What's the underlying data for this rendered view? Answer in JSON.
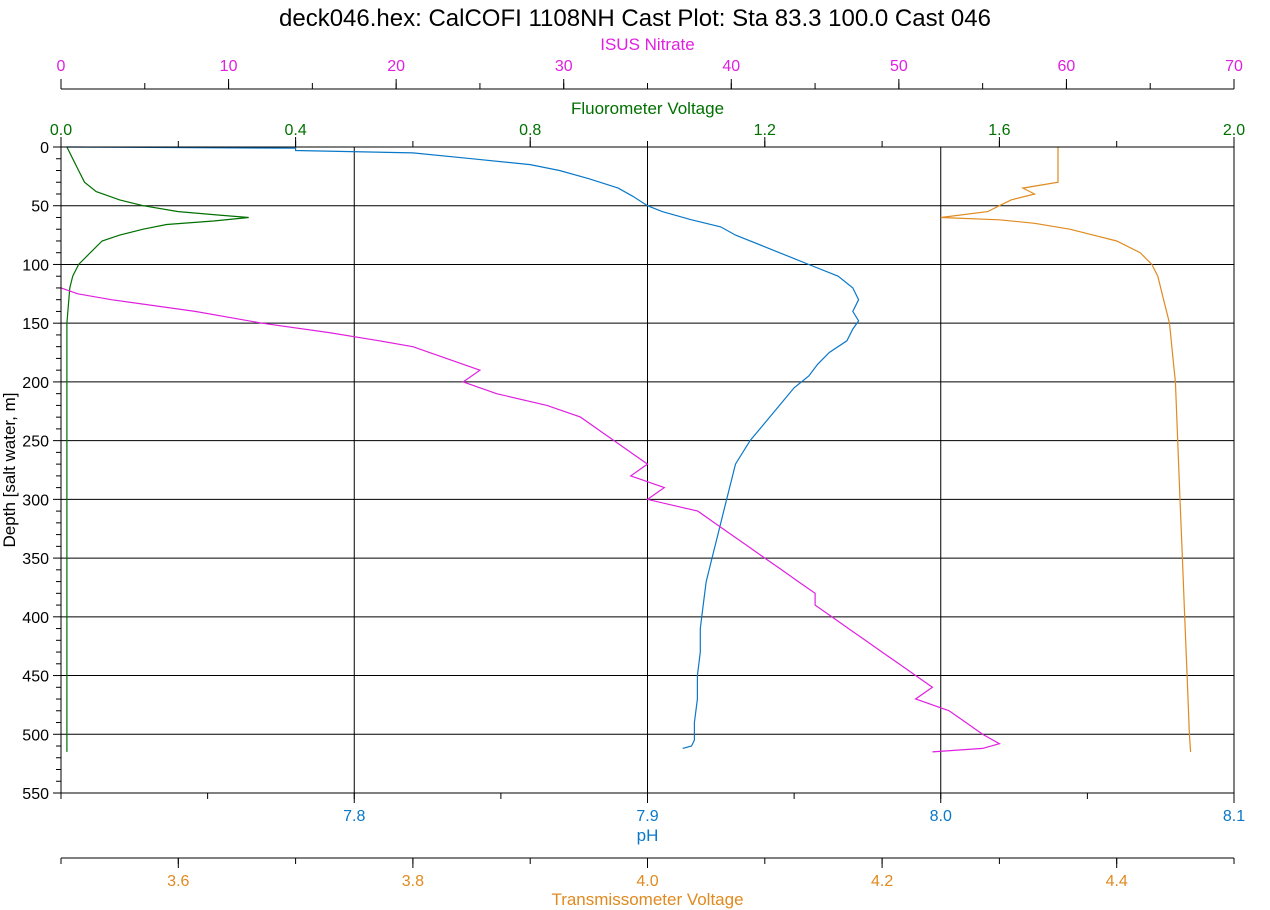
{
  "chart_data": {
    "type": "line",
    "title": "deck046.hex: CalCOFI 1108NH Cast Plot: Sta 83.3  100.0  Cast 046",
    "grid": true,
    "y_axis": {
      "label": "Depth [salt water, m]",
      "range": [
        0,
        550
      ],
      "ticks": [
        "0",
        "50",
        "100",
        "150",
        "200",
        "250",
        "300",
        "350",
        "400",
        "450",
        "500",
        "550"
      ],
      "reversed": true
    },
    "x_axes": [
      {
        "id": "nitrate",
        "label": "ISUS Nitrate",
        "color": "#e020e0",
        "position": "top-1",
        "range": [
          0,
          70
        ],
        "ticks": [
          "0",
          "10",
          "20",
          "30",
          "40",
          "50",
          "60",
          "70"
        ]
      },
      {
        "id": "fluor",
        "label": "Fluorometer Voltage",
        "color": "#007000",
        "position": "top-2",
        "range": [
          0,
          2.0
        ],
        "ticks": [
          "0.0",
          "0.4",
          "0.8",
          "1.2",
          "1.6",
          "2.0"
        ]
      },
      {
        "id": "ph",
        "label": "pH",
        "color": "#0a78c8",
        "position": "bottom-1",
        "range": [
          7.7,
          8.1
        ],
        "ticks": [
          "7.8",
          "7.9",
          "8.0",
          "8.1"
        ]
      },
      {
        "id": "trans",
        "label": "Transmissometer Voltage",
        "color": "#e08a20",
        "position": "bottom-2",
        "range": [
          3.5,
          4.5
        ],
        "ticks": [
          "3.6",
          "3.8",
          "4.0",
          "4.2",
          "4.4"
        ]
      }
    ],
    "series": [
      {
        "axis": "fluor",
        "color": "#007000",
        "points": [
          [
            0.01,
            0
          ],
          [
            0.02,
            10
          ],
          [
            0.03,
            20
          ],
          [
            0.04,
            30
          ],
          [
            0.06,
            38
          ],
          [
            0.1,
            45
          ],
          [
            0.14,
            50
          ],
          [
            0.2,
            55
          ],
          [
            0.27,
            58
          ],
          [
            0.32,
            60
          ],
          [
            0.26,
            63
          ],
          [
            0.18,
            66
          ],
          [
            0.14,
            70
          ],
          [
            0.1,
            75
          ],
          [
            0.07,
            80
          ],
          [
            0.05,
            90
          ],
          [
            0.03,
            100
          ],
          [
            0.02,
            110
          ],
          [
            0.015,
            120
          ],
          [
            0.01,
            150
          ],
          [
            0.01,
            200
          ],
          [
            0.01,
            300
          ],
          [
            0.01,
            400
          ],
          [
            0.01,
            515
          ]
        ]
      },
      {
        "axis": "ph",
        "color": "#0a78c8",
        "points": [
          [
            7.702,
            0
          ],
          [
            7.78,
            1
          ],
          [
            7.78,
            3
          ],
          [
            7.82,
            5
          ],
          [
            7.84,
            10
          ],
          [
            7.86,
            15
          ],
          [
            7.87,
            20
          ],
          [
            7.88,
            27
          ],
          [
            7.89,
            35
          ],
          [
            7.895,
            42
          ],
          [
            7.9,
            50
          ],
          [
            7.905,
            55
          ],
          [
            7.915,
            62
          ],
          [
            7.925,
            68
          ],
          [
            7.93,
            75
          ],
          [
            7.94,
            85
          ],
          [
            7.95,
            95
          ],
          [
            7.955,
            100
          ],
          [
            7.965,
            110
          ],
          [
            7.97,
            120
          ],
          [
            7.972,
            130
          ],
          [
            7.97,
            140
          ],
          [
            7.972,
            148
          ],
          [
            7.97,
            155
          ],
          [
            7.968,
            165
          ],
          [
            7.962,
            175
          ],
          [
            7.958,
            185
          ],
          [
            7.955,
            195
          ],
          [
            7.95,
            205
          ],
          [
            7.945,
            220
          ],
          [
            7.94,
            235
          ],
          [
            7.935,
            250
          ],
          [
            7.93,
            270
          ],
          [
            7.928,
            290
          ],
          [
            7.926,
            310
          ],
          [
            7.924,
            330
          ],
          [
            7.922,
            350
          ],
          [
            7.92,
            370
          ],
          [
            7.919,
            390
          ],
          [
            7.918,
            410
          ],
          [
            7.918,
            430
          ],
          [
            7.917,
            450
          ],
          [
            7.917,
            470
          ],
          [
            7.916,
            490
          ],
          [
            7.916,
            505
          ],
          [
            7.915,
            510
          ],
          [
            7.912,
            512
          ]
        ]
      },
      {
        "axis": "trans",
        "color": "#e08a20",
        "points": [
          [
            4.35,
            0
          ],
          [
            4.35,
            10
          ],
          [
            4.35,
            20
          ],
          [
            4.35,
            30
          ],
          [
            4.32,
            35
          ],
          [
            4.33,
            40
          ],
          [
            4.31,
            45
          ],
          [
            4.3,
            50
          ],
          [
            4.29,
            55
          ],
          [
            4.25,
            60
          ],
          [
            4.3,
            62
          ],
          [
            4.33,
            65
          ],
          [
            4.36,
            70
          ],
          [
            4.38,
            75
          ],
          [
            4.4,
            80
          ],
          [
            4.42,
            90
          ],
          [
            4.43,
            100
          ],
          [
            4.435,
            110
          ],
          [
            4.44,
            130
          ],
          [
            4.445,
            150
          ],
          [
            4.448,
            180
          ],
          [
            4.45,
            200
          ],
          [
            4.452,
            250
          ],
          [
            4.454,
            300
          ],
          [
            4.456,
            350
          ],
          [
            4.458,
            400
          ],
          [
            4.46,
            450
          ],
          [
            4.462,
            500
          ],
          [
            4.463,
            515
          ]
        ]
      },
      {
        "axis": "nitrate",
        "color": "#e020e0",
        "points": [
          [
            0,
            120
          ],
          [
            1,
            125
          ],
          [
            3,
            130
          ],
          [
            8,
            140
          ],
          [
            12,
            150
          ],
          [
            16,
            158
          ],
          [
            19,
            165
          ],
          [
            21,
            170
          ],
          [
            23,
            180
          ],
          [
            25,
            190
          ],
          [
            24,
            200
          ],
          [
            26,
            210
          ],
          [
            29,
            220
          ],
          [
            31,
            230
          ],
          [
            32,
            240
          ],
          [
            33,
            250
          ],
          [
            34,
            260
          ],
          [
            35,
            270
          ],
          [
            34,
            280
          ],
          [
            36,
            290
          ],
          [
            35,
            300
          ],
          [
            38,
            310
          ],
          [
            39,
            320
          ],
          [
            40,
            330
          ],
          [
            41,
            340
          ],
          [
            42,
            350
          ],
          [
            43,
            360
          ],
          [
            44,
            370
          ],
          [
            45,
            380
          ],
          [
            45,
            390
          ],
          [
            46,
            400
          ],
          [
            47,
            410
          ],
          [
            48,
            420
          ],
          [
            49,
            430
          ],
          [
            50,
            440
          ],
          [
            51,
            450
          ],
          [
            52,
            460
          ],
          [
            51,
            470
          ],
          [
            53,
            480
          ],
          [
            54,
            490
          ],
          [
            55,
            500
          ],
          [
            56,
            508
          ],
          [
            55,
            512
          ],
          [
            52,
            515
          ]
        ]
      }
    ]
  }
}
